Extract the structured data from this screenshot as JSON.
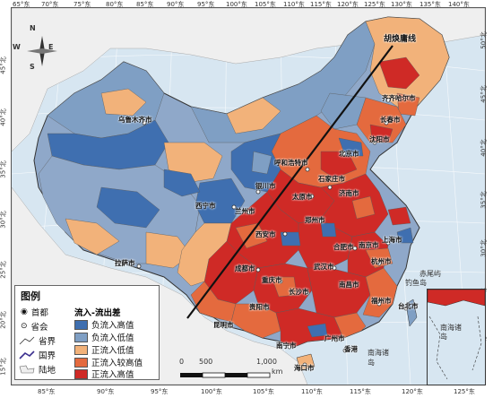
{
  "top_ticks": [
    "65°东",
    "70°东",
    "75°东",
    "80°东",
    "85°东",
    "90°东",
    "95°东",
    "100°东",
    "105°东",
    "110°东",
    "115°东",
    "120°东",
    "125°东",
    "130°东",
    "135°东",
    "140°东"
  ],
  "bottom_ticks": [
    "85°东",
    "90°东",
    "95°东",
    "100°东",
    "105°东",
    "110°东",
    "115°东",
    "120°东",
    "125°东"
  ],
  "left_ticks": [
    "45°北",
    "40°北",
    "35°北",
    "30°北",
    "25°北",
    "20°北",
    "15°北"
  ],
  "right_ticks": [
    "50°北",
    "45°北",
    "40°北",
    "35°北",
    "30°北",
    "25°北",
    "20°北"
  ],
  "hu_line_label": "胡焕庸线",
  "compass": {
    "n": "N",
    "s": "S",
    "e": "E",
    "w": "W"
  },
  "cities": [
    {
      "name": "乌鲁木齐市"
    },
    {
      "name": "齐齐哈尔市"
    },
    {
      "name": "长春市"
    },
    {
      "name": "沈阳市"
    },
    {
      "name": "呼和浩特市"
    },
    {
      "name": "北京市"
    },
    {
      "name": "银川市"
    },
    {
      "name": "太原市"
    },
    {
      "name": "石家庄市"
    },
    {
      "name": "济南市"
    },
    {
      "name": "西宁市"
    },
    {
      "name": "兰州市"
    },
    {
      "name": "西安市"
    },
    {
      "name": "郑州市"
    },
    {
      "name": "合肥市"
    },
    {
      "name": "上海市"
    },
    {
      "name": "南京市"
    },
    {
      "name": "武汉市"
    },
    {
      "name": "杭州市"
    },
    {
      "name": "拉萨市"
    },
    {
      "name": "成都市"
    },
    {
      "name": "重庆市"
    },
    {
      "name": "长沙市"
    },
    {
      "name": "南昌市"
    },
    {
      "name": "贵阳市"
    },
    {
      "name": "福州市"
    },
    {
      "name": "台北市"
    },
    {
      "name": "昆明市"
    },
    {
      "name": "南宁市"
    },
    {
      "name": "广州市"
    },
    {
      "name": "香港"
    },
    {
      "name": "海口市"
    }
  ],
  "misc_labels": {
    "chiweiyu": "赤尾屿",
    "diaoyudao": "钓鱼岛",
    "nanhai": "南海诸岛",
    "inset_text": "南海诸岛"
  },
  "legend": {
    "title": "图例",
    "capital": "首都",
    "provincial_capital": "省会",
    "provincial_border": "省界",
    "national_border": "国界",
    "land": "陆地",
    "category_title": "流入-流出差",
    "categories": [
      {
        "label": "负流入高值",
        "color": "#3f6fb0"
      },
      {
        "label": "负流入低值",
        "color": "#7f9fc4"
      },
      {
        "label": "正流入低值",
        "color": "#f2b27a"
      },
      {
        "label": "正流入较高值",
        "color": "#e46a3e"
      },
      {
        "label": "正流入高值",
        "color": "#cf2a26"
      }
    ]
  },
  "scale": {
    "t0": "0",
    "t1": "500",
    "t2": "1,000",
    "unit": "km"
  }
}
